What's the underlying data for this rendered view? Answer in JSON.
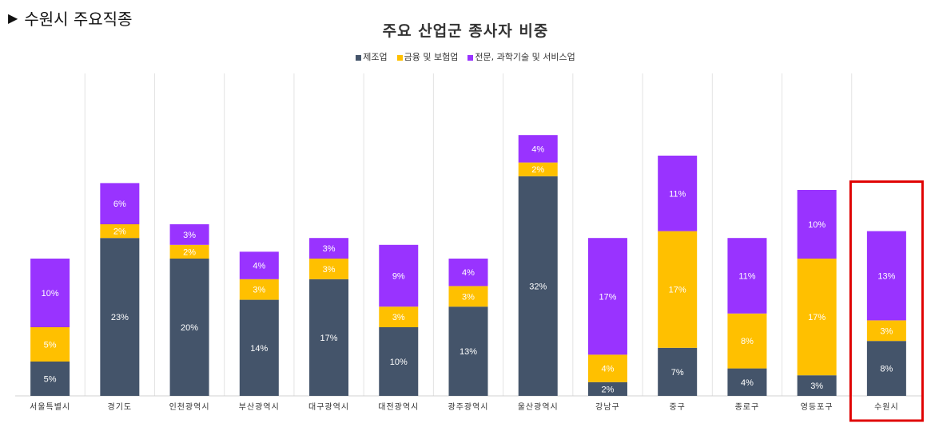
{
  "header": {
    "marker": "▶",
    "title": "수원시 주요직종"
  },
  "chart_data": {
    "type": "bar",
    "stacked": true,
    "title": "주요 산업군 종사자 비중",
    "legend_position": "top",
    "grid": "vertical",
    "categories": [
      "서울특별시",
      "경기도",
      "인천광역시",
      "부산광역시",
      "대구광역시",
      "대전광역시",
      "광주광역시",
      "울산광역시",
      "강남구",
      "중구",
      "종로구",
      "영등포구",
      "수원시"
    ],
    "series": [
      {
        "name": "제조업",
        "color": "#44546A",
        "values": [
          5,
          23,
          20,
          14,
          17,
          10,
          13,
          32,
          2,
          7,
          4,
          3,
          8
        ]
      },
      {
        "name": "금융 및 보험업",
        "color": "#FFC000",
        "values": [
          5,
          2,
          2,
          3,
          3,
          3,
          3,
          2,
          4,
          17,
          8,
          17,
          3
        ]
      },
      {
        "name": "전문, 과학기술 및 서비스업",
        "color": "#9933FF",
        "values": [
          10,
          6,
          3,
          4,
          3,
          9,
          4,
          4,
          17,
          11,
          11,
          10,
          13
        ]
      }
    ],
    "label_suffix": "%",
    "highlight_category": "수원시",
    "highlight_color": "#E00000"
  }
}
